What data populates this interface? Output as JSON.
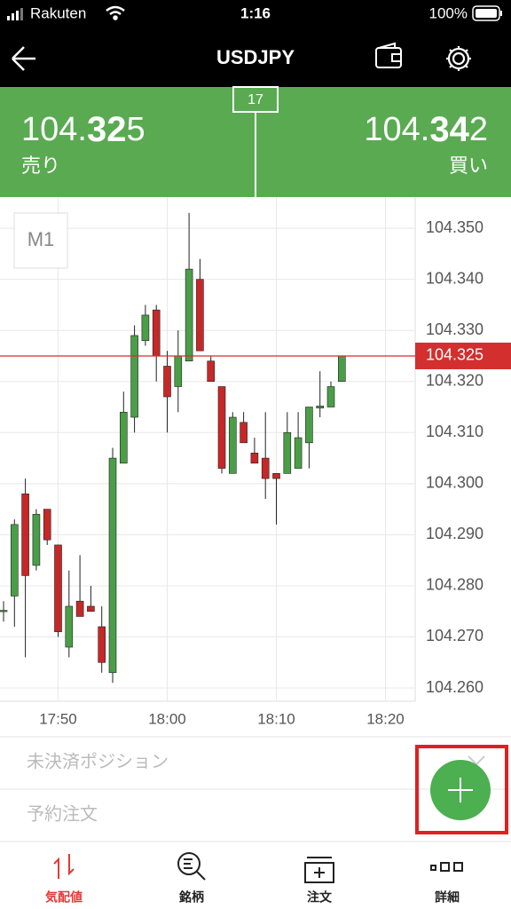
{
  "status_bar": {
    "carrier": "Rakuten",
    "time": "1:16",
    "battery": "100%"
  },
  "header": {
    "title": "USDJPY"
  },
  "quote": {
    "bid": {
      "prefix": "104.",
      "big": "32",
      "suffix": "5",
      "label": "売り"
    },
    "ask": {
      "prefix": "104.",
      "big": "34",
      "suffix": "2",
      "label": "買い"
    },
    "spread": "17"
  },
  "chart_data": {
    "type": "candlestick",
    "timeframe": "M1",
    "categories": [
      null,
      null,
      null,
      null,
      null,
      "17:50",
      null,
      null,
      null,
      null,
      null,
      null,
      null,
      null,
      null,
      "18:00",
      null,
      null,
      null,
      null,
      null,
      null,
      null,
      null,
      null,
      "18:10",
      null,
      null,
      null,
      null,
      null,
      null,
      null,
      null,
      null,
      "18:20"
    ],
    "open": [
      104.275,
      104.278,
      104.298,
      104.284,
      104.295,
      104.288,
      104.268,
      104.277,
      104.276,
      104.272,
      104.263,
      104.304,
      104.313,
      104.328,
      104.334,
      104.323,
      104.319,
      104.324,
      104.34,
      104.324,
      104.319,
      104.302,
      104.312,
      104.306,
      104.305,
      104.302,
      104.302,
      104.303,
      104.308,
      104.3148,
      104.315,
      104.32,
      null,
      null,
      null,
      null
    ],
    "high": [
      104.277,
      104.293,
      104.301,
      104.295,
      104.295,
      104.288,
      104.283,
      104.286,
      104.28,
      104.276,
      104.307,
      104.318,
      104.331,
      104.335,
      104.335,
      104.326,
      104.33,
      104.353,
      104.344,
      104.325,
      104.319,
      104.314,
      104.314,
      104.309,
      104.314,
      104.302,
      104.314,
      104.314,
      104.315,
      104.322,
      104.32,
      104.325,
      null,
      null,
      null,
      null
    ],
    "low": [
      104.273,
      104.272,
      104.266,
      104.283,
      104.288,
      104.27,
      104.266,
      104.274,
      104.275,
      104.263,
      104.261,
      104.304,
      104.31,
      104.327,
      104.32,
      104.31,
      104.314,
      104.324,
      104.326,
      104.32,
      104.302,
      104.302,
      104.308,
      104.304,
      104.297,
      104.292,
      104.302,
      104.303,
      104.303,
      104.313,
      104.315,
      104.32,
      null,
      null,
      null,
      null
    ],
    "close": [
      104.2752,
      104.292,
      104.282,
      104.294,
      104.289,
      104.271,
      104.276,
      104.274,
      104.275,
      104.265,
      104.305,
      104.314,
      104.329,
      104.333,
      104.325,
      104.317,
      104.325,
      104.342,
      104.326,
      104.32,
      104.303,
      104.313,
      104.308,
      104.304,
      104.301,
      104.301,
      104.31,
      104.309,
      104.315,
      104.3152,
      104.319,
      104.325,
      null,
      null,
      null,
      null
    ],
    "up_color": "#4a9e47",
    "down_color": "#c62828",
    "ylim": [
      104.2574,
      104.3561
    ],
    "yticks": [
      {
        "value": 104.26,
        "label": "104.260"
      },
      {
        "value": 104.27,
        "label": "104.270"
      },
      {
        "value": 104.28,
        "label": "104.280"
      },
      {
        "value": 104.29,
        "label": "104.290"
      },
      {
        "value": 104.3,
        "label": "104.300"
      },
      {
        "value": 104.31,
        "label": "104.310"
      },
      {
        "value": 104.32,
        "label": "104.320"
      },
      {
        "value": 104.33,
        "label": "104.330"
      },
      {
        "value": 104.34,
        "label": "104.340"
      },
      {
        "value": 104.35,
        "label": "104.350"
      }
    ],
    "grid": true,
    "last_price": {
      "value": 104.325,
      "label": "104.325",
      "color": "#d32f2f"
    }
  },
  "panels": [
    "未決済ポジション",
    "予約注文"
  ],
  "tabs": [
    "気配値",
    "銘柄",
    "注文",
    "詳細"
  ]
}
